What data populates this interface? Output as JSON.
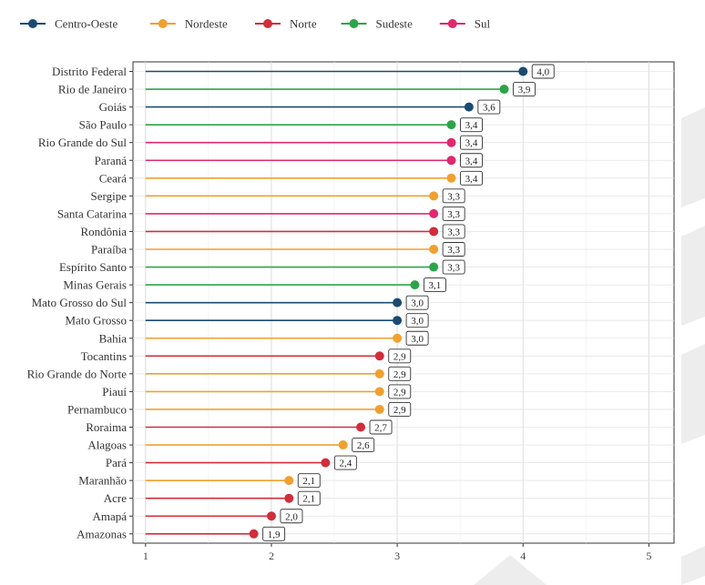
{
  "chart_data": {
    "type": "lollipop",
    "orientation": "horizontal",
    "title": "",
    "xlabel": "",
    "ylabel": "",
    "xlim": [
      0.9,
      5.2
    ],
    "x_ticks": [
      1,
      2,
      3,
      4,
      5
    ],
    "grid": true,
    "legend": {
      "placement": "top-left",
      "entries": [
        {
          "name": "Centro-Oeste",
          "color": "#1b4a70"
        },
        {
          "name": "Nordeste",
          "color": "#f0a030"
        },
        {
          "name": "Norte",
          "color": "#d12d3b"
        },
        {
          "name": "Sudeste",
          "color": "#2ca449"
        },
        {
          "name": "Sul",
          "color": "#e0286e"
        }
      ]
    },
    "categories": [
      "Distrito Federal",
      "Rio de Janeiro",
      "Goiás",
      "São Paulo",
      "Rio Grande do Sul",
      "Paraná",
      "Ceará",
      "Sergipe",
      "Santa Catarina",
      "Rondônia",
      "Paraíba",
      "Espírito Santo",
      "Minas Gerais",
      "Mato Grosso do Sul",
      "Mato Grosso",
      "Bahia",
      "Tocantins",
      "Rio Grande do Norte",
      "Piauí",
      "Pernambuco",
      "Roraima",
      "Alagoas",
      "Pará",
      "Maranhão",
      "Acre",
      "Amapá",
      "Amazonas"
    ],
    "values": [
      4.0,
      3.85,
      3.57,
      3.43,
      3.43,
      3.43,
      3.43,
      3.29,
      3.29,
      3.29,
      3.29,
      3.29,
      3.14,
      3.0,
      3.0,
      3.0,
      2.86,
      2.86,
      2.86,
      2.86,
      2.71,
      2.57,
      2.43,
      2.14,
      2.14,
      2.0,
      1.86
    ],
    "labels": [
      "4,0",
      "3,9",
      "3,6",
      "3,4",
      "3,4",
      "3,4",
      "3,4",
      "3,3",
      "3,3",
      "3,3",
      "3,3",
      "3,3",
      "3,1",
      "3,0",
      "3,0",
      "3,0",
      "2,9",
      "2,9",
      "2,9",
      "2,9",
      "2,7",
      "2,6",
      "2,4",
      "2,1",
      "2,1",
      "2,0",
      "1,9"
    ],
    "regions": [
      "Centro-Oeste",
      "Sudeste",
      "Centro-Oeste",
      "Sudeste",
      "Sul",
      "Sul",
      "Nordeste",
      "Nordeste",
      "Sul",
      "Norte",
      "Nordeste",
      "Sudeste",
      "Sudeste",
      "Centro-Oeste",
      "Centro-Oeste",
      "Nordeste",
      "Norte",
      "Nordeste",
      "Nordeste",
      "Nordeste",
      "Norte",
      "Nordeste",
      "Norte",
      "Nordeste",
      "Norte",
      "Norte",
      "Norte"
    ]
  }
}
